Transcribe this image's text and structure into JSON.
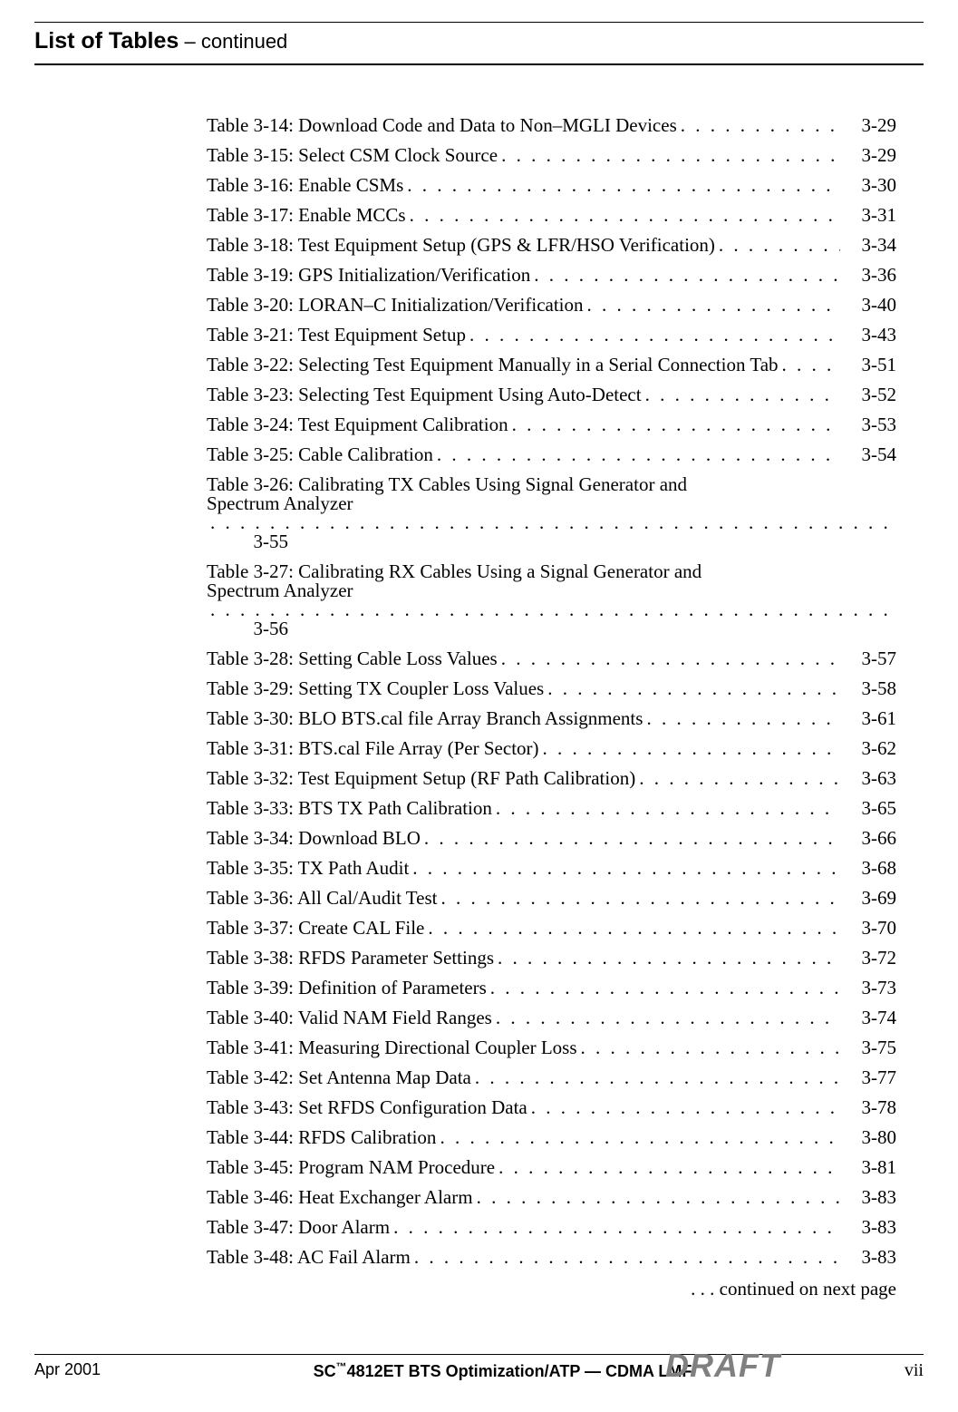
{
  "heading": {
    "title": "List of Tables",
    "suffix": "– continued"
  },
  "entries": [
    {
      "label": "Table 3-14: Download Code and Data to Non–MGLI Devices",
      "page": "3-29"
    },
    {
      "label": "Table 3-15: Select CSM Clock Source",
      "page": "3-29"
    },
    {
      "label": "Table 3-16: Enable CSMs",
      "page": "3-30"
    },
    {
      "label": "Table 3-17: Enable MCCs",
      "page": "3-31"
    },
    {
      "label": "Table 3-18: Test Equipment Setup (GPS & LFR/HSO Verification)",
      "page": "3-34"
    },
    {
      "label": "Table 3-19: GPS Initialization/Verification",
      "page": "3-36"
    },
    {
      "label": "Table 3-20: LORAN–C Initialization/Verification",
      "page": "3-40"
    },
    {
      "label": "Table 3-21: Test Equipment Setup",
      "page": "3-43"
    },
    {
      "label": "Table 3-22: Selecting Test Equipment Manually in a Serial Connection Tab",
      "page": "3-51"
    },
    {
      "label": "Table 3-23: Selecting Test Equipment Using Auto-Detect",
      "page": "3-52"
    },
    {
      "label": "Table 3-24: Test Equipment Calibration",
      "page": "3-53"
    },
    {
      "label": "Table 3-25: Cable Calibration",
      "page": "3-54"
    },
    {
      "label": "Table 3-26: Calibrating TX Cables Using Signal Generator and",
      "label2": "Spectrum Analyzer",
      "page": "3-55",
      "multiline": true
    },
    {
      "label": "Table 3-27: Calibrating RX Cables Using a Signal Generator and",
      "label2": "Spectrum Analyzer",
      "page": "3-56",
      "multiline": true
    },
    {
      "label": "Table 3-28: Setting Cable Loss Values",
      "page": "3-57"
    },
    {
      "label": "Table 3-29: Setting TX Coupler Loss Values",
      "page": "3-58"
    },
    {
      "label": "Table 3-30: BLO BTS.cal file Array Branch Assignments",
      "page": "3-61"
    },
    {
      "label": "Table 3-31: BTS.cal File Array (Per Sector)",
      "page": "3-62"
    },
    {
      "label": "Table 3-32: Test Equipment Setup (RF Path Calibration)",
      "page": "3-63"
    },
    {
      "label": "Table 3-33: BTS TX Path Calibration",
      "page": "3-65"
    },
    {
      "label": "Table 3-34: Download BLO",
      "page": "3-66"
    },
    {
      "label": "Table 3-35: TX Path Audit",
      "page": "3-68"
    },
    {
      "label": "Table 3-36: All Cal/Audit Test",
      "page": "3-69"
    },
    {
      "label": "Table 3-37: Create CAL File",
      "page": "3-70"
    },
    {
      "label": "Table 3-38: RFDS Parameter Settings",
      "page": "3-72"
    },
    {
      "label": "Table 3-39: Definition of Parameters",
      "page": "3-73"
    },
    {
      "label": "Table 3-40: Valid NAM Field Ranges",
      "page": "3-74"
    },
    {
      "label": "Table 3-41: Measuring Directional Coupler Loss",
      "page": "3-75"
    },
    {
      "label": "Table 3-42: Set Antenna Map Data",
      "page": "3-77"
    },
    {
      "label": "Table 3-43: Set RFDS Configuration Data",
      "page": "3-78"
    },
    {
      "label": "Table 3-44: RFDS Calibration",
      "page": "3-80"
    },
    {
      "label": "Table 3-45: Program NAM Procedure",
      "page": "3-81"
    },
    {
      "label": "Table 3-46: Heat Exchanger Alarm",
      "page": "3-83"
    },
    {
      "label": "Table 3-47: Door Alarm",
      "page": "3-83"
    },
    {
      "label": "Table 3-48: AC Fail Alarm",
      "page": "3-83"
    }
  ],
  "continued_text": ". . . continued on next page",
  "footer": {
    "date": "Apr 2001",
    "center_prefix": "SC",
    "center_tm": "™",
    "center_rest": "4812ET BTS Optimization/ATP — CDMA LMF",
    "pageno": "vii",
    "draft": "DRAFT"
  },
  "colors": {
    "text": "#000000",
    "bg": "#ffffff",
    "draft": "#808080"
  }
}
